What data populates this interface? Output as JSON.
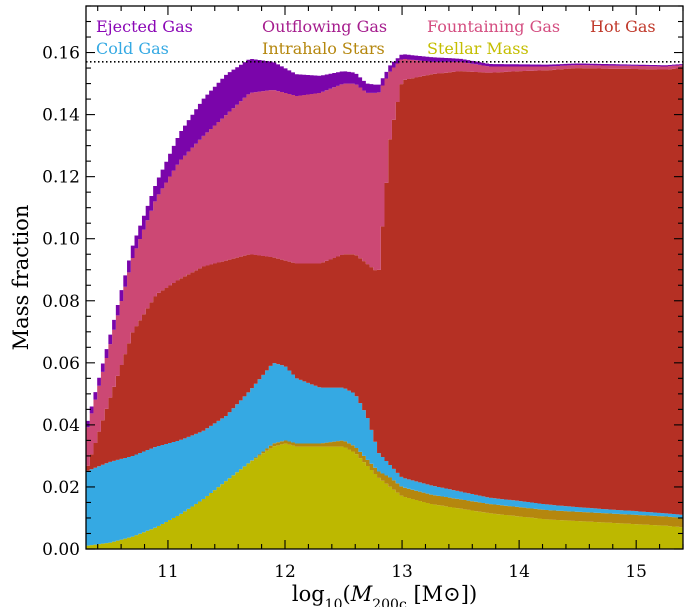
{
  "chart_data": {
    "type": "area",
    "style": "stacked-step",
    "xlabel": "log10(M200c [M⊙])",
    "ylabel": "Mass fraction",
    "xlim": [
      10.3,
      15.4
    ],
    "ylim": [
      0.0,
      0.175
    ],
    "xticks": [
      11,
      12,
      13,
      14,
      15
    ],
    "yticks": [
      0.0,
      0.02,
      0.04,
      0.06,
      0.08,
      0.1,
      0.12,
      0.14,
      0.16
    ],
    "ytick_labels": [
      "0.00",
      "0.02",
      "0.04",
      "0.06",
      "0.08",
      "0.10",
      "0.12",
      "0.14",
      "0.16"
    ],
    "reference_line": {
      "y": 0.157,
      "style": "dotted",
      "color": "#000000"
    },
    "legend_placement": "top, inside, 4 columns",
    "x": [
      10.3,
      10.5,
      10.7,
      10.9,
      11.1,
      11.3,
      11.5,
      11.7,
      11.9,
      12.0,
      12.1,
      12.3,
      12.5,
      12.6,
      12.7,
      12.8,
      12.9,
      13.0,
      13.25,
      13.5,
      13.75,
      14.0,
      14.25,
      14.5,
      14.75,
      15.0,
      15.25,
      15.4
    ],
    "series_order_bottom_to_top": [
      "Stellar Mass",
      "Intrahalo Stars",
      "Cold Gas",
      "Hot Gas",
      "Fountaining Gas",
      "Outflowing Gas",
      "Ejected Gas"
    ],
    "series": [
      {
        "name": "Stellar Mass",
        "color": "#bdb800",
        "values": [
          0.001,
          0.002,
          0.004,
          0.007,
          0.011,
          0.016,
          0.022,
          0.028,
          0.033,
          0.034,
          0.033,
          0.033,
          0.033,
          0.031,
          0.027,
          0.023,
          0.02,
          0.017,
          0.0145,
          0.013,
          0.0115,
          0.0105,
          0.0095,
          0.009,
          0.0085,
          0.008,
          0.0075,
          0.007
        ]
      },
      {
        "name": "Intrahalo Stars",
        "color": "#b5870e",
        "values": [
          0.0,
          0.0,
          0.0,
          0.0,
          0.0,
          0.0,
          0.0,
          0.0,
          0.001,
          0.001,
          0.001,
          0.001,
          0.002,
          0.002,
          0.002,
          0.002,
          0.003,
          0.003,
          0.003,
          0.003,
          0.003,
          0.003,
          0.003,
          0.003,
          0.003,
          0.003,
          0.003,
          0.003
        ]
      },
      {
        "name": "Cold Gas",
        "color": "#35a9e3",
        "values": [
          0.024,
          0.026,
          0.026,
          0.026,
          0.024,
          0.022,
          0.021,
          0.023,
          0.026,
          0.024,
          0.021,
          0.018,
          0.017,
          0.017,
          0.014,
          0.006,
          0.004,
          0.003,
          0.003,
          0.0025,
          0.002,
          0.002,
          0.0018,
          0.0015,
          0.0013,
          0.0012,
          0.001,
          0.001
        ]
      },
      {
        "name": "Hot Gas",
        "color": "#b53024",
        "values": [
          0.0,
          0.02,
          0.04,
          0.049,
          0.052,
          0.053,
          0.05,
          0.044,
          0.034,
          0.034,
          0.037,
          0.04,
          0.043,
          0.045,
          0.049,
          0.058,
          0.106,
          0.128,
          0.1325,
          0.1355,
          0.137,
          0.1385,
          0.14,
          0.1415,
          0.142,
          0.1425,
          0.143,
          0.144
        ]
      },
      {
        "name": "Fountaining Gas",
        "color": "#cc4874",
        "values": [
          0.012,
          0.017,
          0.024,
          0.031,
          0.038,
          0.042,
          0.047,
          0.052,
          0.054,
          0.054,
          0.054,
          0.055,
          0.055,
          0.055,
          0.055,
          0.058,
          0.021,
          0.007,
          0.004,
          0.003,
          0.002,
          0.0015,
          0.0012,
          0.001,
          0.001,
          0.001,
          0.001,
          0.001
        ]
      },
      {
        "name": "Outflowing Gas",
        "color": "#a51c8d",
        "values": [
          0.0,
          0.0,
          0.0,
          0.0,
          0.0,
          0.0,
          0.0,
          0.0,
          0.0,
          0.0,
          0.0,
          0.0,
          0.0,
          0.0,
          0.0,
          0.0,
          0.0,
          0.0,
          0.0,
          0.0,
          0.0,
          0.0,
          0.0,
          0.0,
          0.0,
          0.0,
          0.0,
          0.0
        ]
      },
      {
        "name": "Ejected Gas",
        "color": "#7a05aa",
        "values": [
          0.002,
          0.003,
          0.004,
          0.005,
          0.009,
          0.012,
          0.013,
          0.011,
          0.009,
          0.008,
          0.007,
          0.0055,
          0.004,
          0.0035,
          0.003,
          0.0025,
          0.002,
          0.0015,
          0.0015,
          0.001,
          0.0008,
          0.0007,
          0.0006,
          0.0005,
          0.0005,
          0.0004,
          0.0004,
          0.0003
        ]
      }
    ],
    "legend": [
      {
        "label": "Ejected Gas",
        "color": "#8a06b5"
      },
      {
        "label": "Outflowing Gas",
        "color": "#a51c8d"
      },
      {
        "label": "Fountaining Gas",
        "color": "#d44d80"
      },
      {
        "label": "Hot Gas",
        "color": "#c0392b"
      },
      {
        "label": "Cold Gas",
        "color": "#35a9e3"
      },
      {
        "label": "Intrahalo Stars",
        "color": "#b5870e"
      },
      {
        "label": "Stellar Mass",
        "color": "#c4be00"
      }
    ]
  }
}
